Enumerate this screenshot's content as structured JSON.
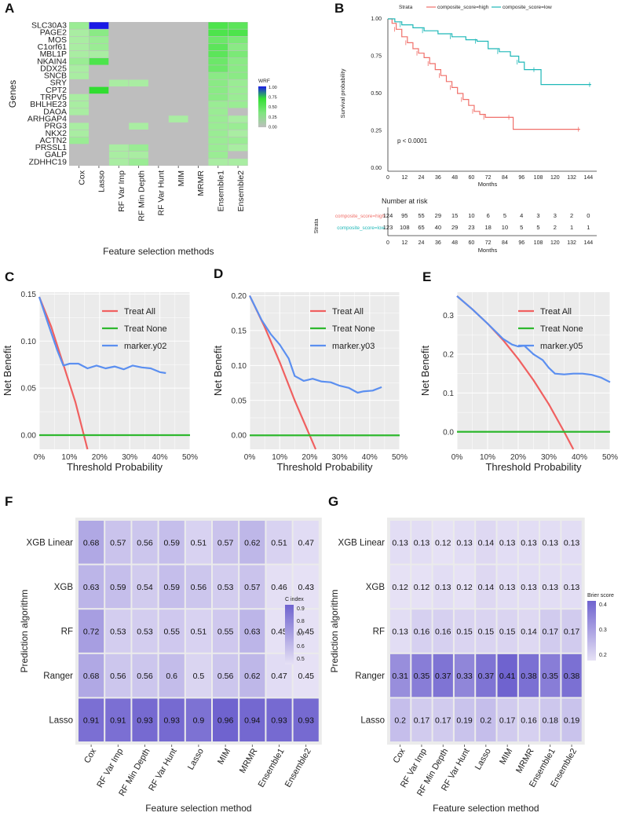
{
  "colors": {
    "panel_bg": "#ebebeb",
    "grid": "#ffffff",
    "heat_grey": "#bebebe",
    "high": "#f0706a",
    "low": "#1fb8b8",
    "treat_all": "#f06060",
    "treat_none": "#2fb82f",
    "marker": "#5b8ff0"
  },
  "chart_data": [
    {
      "panel": "A",
      "type": "heatmap",
      "ylabel": "Genes",
      "xlabel": "Feature selection methods",
      "legend_title": "WRF",
      "legend_ticks": [
        "1.00",
        "0.75",
        "0.50",
        "0.25",
        "0.00"
      ],
      "genes": [
        "SLC30A3",
        "PAGE2",
        "MOS",
        "C1orf61",
        "MBL1P",
        "NKAIN4",
        "DDX25",
        "SNCB",
        "SRY",
        "CPT2",
        "TRPV5",
        "BHLHE23",
        "DAOA",
        "ARHGAP4",
        "PRG3",
        "NKX2",
        "ACTN2",
        "PRSSL1",
        "GALP",
        "ZDHHC19"
      ],
      "methods": [
        "Cox",
        "Lasso",
        "RF Var Imp",
        "RF Min Depth",
        "RF Var Hunt",
        "MIM",
        "MRMR",
        "Ensemble1",
        "Ensemble2"
      ],
      "values": [
        [
          0.25,
          1.0,
          0,
          0,
          0,
          0,
          0,
          0.5,
          0.45
        ],
        [
          0.2,
          0.3,
          0,
          0,
          0,
          0,
          0,
          0.5,
          0.5
        ],
        [
          0.2,
          0.25,
          0,
          0,
          0,
          0,
          0,
          0.4,
          0.35
        ],
        [
          0.2,
          0.25,
          0,
          0,
          0,
          0,
          0,
          0.45,
          0.3
        ],
        [
          0.2,
          0.2,
          0,
          0,
          0,
          0,
          0,
          0.45,
          0.35
        ],
        [
          0.25,
          0.5,
          0,
          0,
          0,
          0,
          0,
          0.4,
          0.3
        ],
        [
          0.2,
          0,
          0,
          0,
          0,
          0,
          0,
          0.4,
          0.3
        ],
        [
          0.2,
          0,
          0,
          0,
          0,
          0,
          0,
          0.3,
          0.3
        ],
        [
          0,
          0,
          0.2,
          0.2,
          0,
          0,
          0,
          0.3,
          0.25
        ],
        [
          0,
          0.6,
          0,
          0,
          0,
          0,
          0,
          0.3,
          0.25
        ],
        [
          0.2,
          0,
          0,
          0,
          0,
          0,
          0,
          0.3,
          0.25
        ],
        [
          0.2,
          0,
          0,
          0,
          0,
          0,
          0,
          0.25,
          0.25
        ],
        [
          0.2,
          0,
          0,
          0,
          0,
          0,
          0,
          0.25,
          0
        ],
        [
          0,
          0,
          0,
          0,
          0,
          0.2,
          0,
          0.25,
          0.2
        ],
        [
          0.2,
          0,
          0,
          0.2,
          0,
          0,
          0,
          0.25,
          0.25
        ],
        [
          0.2,
          0,
          0,
          0,
          0,
          0,
          0,
          0.25,
          0.2
        ],
        [
          0.25,
          0,
          0,
          0,
          0,
          0,
          0,
          0.25,
          0.25
        ],
        [
          0,
          0,
          0.2,
          0.25,
          0,
          0,
          0,
          0.25,
          0.2
        ],
        [
          0,
          0,
          0.2,
          0.2,
          0,
          0,
          0,
          0.25,
          0
        ],
        [
          0,
          0,
          0.2,
          0.25,
          0,
          0,
          0,
          0.2,
          0.2
        ]
      ]
    },
    {
      "panel": "B",
      "type": "line",
      "title": "Strata",
      "legend": [
        "composite_score=high",
        "composite_score=low"
      ],
      "ylabel": "Survival probability",
      "xlabel": "Months",
      "ylim": [
        0,
        1
      ],
      "yticks": [
        "0.00",
        "0.25",
        "0.50",
        "0.75",
        "1.00"
      ],
      "xticks": [
        0,
        12,
        24,
        36,
        48,
        60,
        72,
        84,
        96,
        108,
        120,
        132,
        144
      ],
      "xlim": [
        0,
        150
      ],
      "pvalue": "p < 0.0001",
      "series": [
        {
          "name": "composite_score=high",
          "points": [
            [
              0,
              1
            ],
            [
              3,
              0.97
            ],
            [
              6,
              0.93
            ],
            [
              10,
              0.88
            ],
            [
              14,
              0.84
            ],
            [
              18,
              0.8
            ],
            [
              22,
              0.77
            ],
            [
              26,
              0.74
            ],
            [
              30,
              0.7
            ],
            [
              34,
              0.66
            ],
            [
              38,
              0.62
            ],
            [
              42,
              0.58
            ],
            [
              46,
              0.54
            ],
            [
              50,
              0.5
            ],
            [
              54,
              0.46
            ],
            [
              58,
              0.42
            ],
            [
              62,
              0.38
            ],
            [
              66,
              0.36
            ],
            [
              70,
              0.34
            ],
            [
              84,
              0.34
            ],
            [
              88,
              0.34
            ],
            [
              90,
              0.26
            ],
            [
              138,
              0.26
            ]
          ]
        },
        {
          "name": "composite_score=low",
          "points": [
            [
              0,
              1
            ],
            [
              5,
              0.98
            ],
            [
              10,
              0.96
            ],
            [
              18,
              0.94
            ],
            [
              26,
              0.92
            ],
            [
              36,
              0.9
            ],
            [
              46,
              0.88
            ],
            [
              56,
              0.86
            ],
            [
              64,
              0.85
            ],
            [
              72,
              0.8
            ],
            [
              80,
              0.78
            ],
            [
              88,
              0.75
            ],
            [
              94,
              0.71
            ],
            [
              98,
              0.66
            ],
            [
              106,
              0.66
            ],
            [
              110,
              0.56
            ],
            [
              146,
              0.56
            ]
          ]
        }
      ],
      "risk_table": {
        "title": "Number at risk",
        "ylabel": "Strata",
        "xlabel": "Months",
        "rows": [
          {
            "name": "composite_score=high",
            "values": [
              "124",
              "95",
              "55",
              "29",
              "15",
              "10",
              "6",
              "5",
              "4",
              "3",
              "3",
              "2",
              "0"
            ]
          },
          {
            "name": "composite_score=low",
            "values": [
              "123",
              "108",
              "65",
              "40",
              "29",
              "23",
              "18",
              "10",
              "5",
              "5",
              "2",
              "1",
              "1"
            ]
          }
        ]
      }
    },
    {
      "panel": "C",
      "type": "line",
      "xlabel": "Threshold Probability",
      "ylabel": "Net Benefit",
      "xlim": [
        0,
        0.5
      ],
      "ylim": [
        -0.015,
        0.152
      ],
      "yticks": [
        0,
        0.05,
        0.1,
        0.15
      ],
      "yticklabels": [
        "0.00",
        "0.05",
        "0.10",
        "0.15"
      ],
      "xticks": [
        0,
        0.1,
        0.2,
        0.3,
        0.4,
        0.5
      ],
      "xticklabels": [
        "0%",
        "10%",
        "20%",
        "30%",
        "40%",
        "50%"
      ],
      "legend": [
        "Treat All",
        "Treat None",
        "marker.y02"
      ],
      "series": [
        {
          "name": "Treat All",
          "x": [
            0,
            0.04,
            0.08,
            0.12,
            0.16
          ],
          "y": [
            0.147,
            0.115,
            0.075,
            0.035,
            -0.015
          ]
        },
        {
          "name": "Treat None",
          "x": [
            0,
            0.5
          ],
          "y": [
            0,
            0
          ]
        },
        {
          "name": "marker.y02",
          "x": [
            0,
            0.03,
            0.06,
            0.08,
            0.1,
            0.13,
            0.16,
            0.19,
            0.22,
            0.25,
            0.28,
            0.31,
            0.34,
            0.37,
            0.4,
            0.42
          ],
          "y": [
            0.147,
            0.118,
            0.09,
            0.074,
            0.076,
            0.076,
            0.071,
            0.074,
            0.071,
            0.073,
            0.07,
            0.074,
            0.072,
            0.071,
            0.067,
            0.066
          ]
        }
      ]
    },
    {
      "panel": "D",
      "type": "line",
      "xlabel": "Threshold Probability",
      "ylabel": "Net Benefit",
      "xlim": [
        0,
        0.5
      ],
      "ylim": [
        -0.02,
        0.205
      ],
      "yticks": [
        0,
        0.05,
        0.1,
        0.15,
        0.2
      ],
      "yticklabels": [
        "0.00",
        "0.05",
        "0.10",
        "0.15",
        "0.20"
      ],
      "xticks": [
        0,
        0.1,
        0.2,
        0.3,
        0.4,
        0.5
      ],
      "xticklabels": [
        "0%",
        "10%",
        "20%",
        "30%",
        "40%",
        "50%"
      ],
      "legend": [
        "Treat All",
        "Treat None",
        "marker.y03"
      ],
      "series": [
        {
          "name": "Treat All",
          "x": [
            0,
            0.05,
            0.1,
            0.15,
            0.2,
            0.22
          ],
          "y": [
            0.2,
            0.155,
            0.105,
            0.05,
            0,
            -0.02
          ]
        },
        {
          "name": "Treat None",
          "x": [
            0,
            0.5
          ],
          "y": [
            0,
            0
          ]
        },
        {
          "name": "marker.y03",
          "x": [
            0,
            0.04,
            0.07,
            0.1,
            0.13,
            0.15,
            0.18,
            0.21,
            0.24,
            0.27,
            0.3,
            0.33,
            0.36,
            0.38,
            0.41,
            0.44
          ],
          "y": [
            0.2,
            0.165,
            0.145,
            0.13,
            0.11,
            0.085,
            0.078,
            0.081,
            0.077,
            0.076,
            0.071,
            0.068,
            0.061,
            0.063,
            0.064,
            0.069
          ]
        }
      ]
    },
    {
      "panel": "E",
      "type": "line",
      "xlabel": "Threshold Probability",
      "ylabel": "Net Benefit",
      "xlim": [
        0,
        0.5
      ],
      "ylim": [
        -0.045,
        0.36
      ],
      "yticks": [
        0,
        0.1,
        0.2,
        0.3
      ],
      "yticklabels": [
        "0.0",
        "0.1",
        "0.2",
        "0.3"
      ],
      "xticks": [
        0,
        0.1,
        0.2,
        0.3,
        0.4,
        0.5
      ],
      "xticklabels": [
        "0%",
        "10%",
        "20%",
        "30%",
        "40%",
        "50%"
      ],
      "legend": [
        "Treat All",
        "Treat None",
        "marker.y05"
      ],
      "series": [
        {
          "name": "Treat All",
          "x": [
            0,
            0.05,
            0.1,
            0.15,
            0.2,
            0.25,
            0.3,
            0.35,
            0.38
          ],
          "y": [
            0.35,
            0.316,
            0.279,
            0.237,
            0.188,
            0.133,
            0.071,
            0,
            -0.045
          ]
        },
        {
          "name": "Treat None",
          "x": [
            0,
            0.5
          ],
          "y": [
            0,
            0
          ]
        },
        {
          "name": "marker.y05",
          "x": [
            0,
            0.05,
            0.1,
            0.15,
            0.18,
            0.2,
            0.22,
            0.25,
            0.28,
            0.3,
            0.32,
            0.35,
            0.38,
            0.41,
            0.44,
            0.47,
            0.5
          ],
          "y": [
            0.35,
            0.316,
            0.279,
            0.24,
            0.225,
            0.22,
            0.222,
            0.2,
            0.185,
            0.165,
            0.15,
            0.148,
            0.15,
            0.15,
            0.147,
            0.14,
            0.128
          ]
        }
      ]
    },
    {
      "panel": "F",
      "type": "heatmap",
      "legend_title": "C index",
      "legend_ticks": [
        "0.9",
        "0.8",
        "0.7",
        "0.6",
        "0.5"
      ],
      "legend_range": [
        0.45,
        0.96
      ],
      "ylabel": "Prediction algorithm",
      "xlabel": "Feature selection method",
      "rows": [
        "XGB Linear",
        "XGB",
        "RF",
        "Ranger",
        "Lasso"
      ],
      "columns": [
        "Cox",
        "RF Var Imp",
        "RF Min Depth",
        "RF Var Hunt",
        "Lasso",
        "MIM",
        "MRMR",
        "Ensemble1",
        "Ensemble2"
      ],
      "labels": [
        [
          "0.68",
          "0.57",
          "0.56",
          "0.59",
          "0.51",
          "0.57",
          "0.62",
          "0.51",
          "0.47"
        ],
        [
          "0.63",
          "0.59",
          "0.54",
          "0.59",
          "0.56",
          "0.53",
          "0.57",
          "0.46",
          "0.43"
        ],
        [
          "0.72",
          "0.53",
          "0.53",
          "0.55",
          "0.51",
          "0.55",
          "0.63",
          "0.45",
          "0.45"
        ],
        [
          "0.68",
          "0.56",
          "0.56",
          "0.6",
          "0.5",
          "0.56",
          "0.62",
          "0.47",
          "0.45"
        ],
        [
          "0.91",
          "0.91",
          "0.93",
          "0.93",
          "0.9",
          "0.96",
          "0.94",
          "0.93",
          "0.93"
        ]
      ]
    },
    {
      "panel": "G",
      "type": "heatmap",
      "legend_title": "Brier score",
      "legend_ticks": [
        "0.4",
        "0.3",
        "0.2"
      ],
      "legend_range": [
        0.12,
        0.41
      ],
      "ylabel": "Prediction algorithm",
      "xlabel": "Feature selection method",
      "rows": [
        "XGB Linear",
        "XGB",
        "RF",
        "Ranger",
        "Lasso"
      ],
      "columns": [
        "Cox",
        "RF Var Imp",
        "RF Min Depth",
        "RF Var Hunt",
        "Lasso",
        "MIM",
        "MRMR",
        "Ensemble1",
        "Ensemble2"
      ],
      "labels": [
        [
          "0.13",
          "0.13",
          "0.12",
          "0.13",
          "0.14",
          "0.13",
          "0.13",
          "0.13",
          "0.13"
        ],
        [
          "0.12",
          "0.12",
          "0.13",
          "0.12",
          "0.14",
          "0.13",
          "0.13",
          "0.13",
          "0.13"
        ],
        [
          "0.13",
          "0.16",
          "0.16",
          "0.15",
          "0.15",
          "0.15",
          "0.14",
          "0.17",
          "0.17"
        ],
        [
          "0.31",
          "0.35",
          "0.37",
          "0.33",
          "0.37",
          "0.41",
          "0.38",
          "0.35",
          "0.38"
        ],
        [
          "0.2",
          "0.17",
          "0.17",
          "0.19",
          "0.2",
          "0.17",
          "0.16",
          "0.18",
          "0.19"
        ]
      ]
    }
  ]
}
